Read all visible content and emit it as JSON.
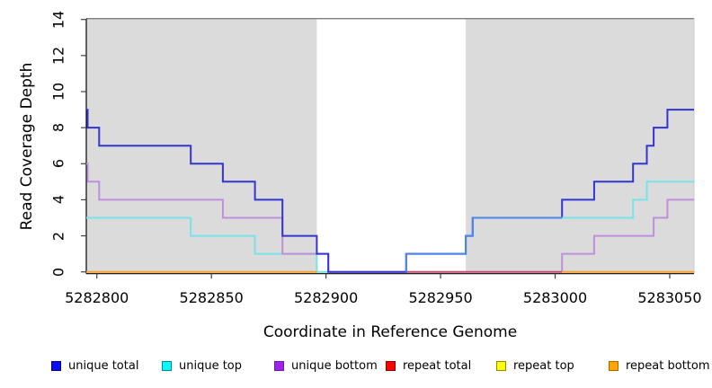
{
  "chart": {
    "ylabel": "Read Coverage Depth",
    "xlabel": "Coordinate in Reference Genome"
  },
  "chart_data": {
    "type": "line",
    "style": "step",
    "title": "",
    "xlabel": "Coordinate in Reference Genome",
    "ylabel": "Read Coverage Depth",
    "xlim": [
      5282795.4,
      5283060.6
    ],
    "ylim": [
      0,
      14
    ],
    "x_ticks": [
      5282800,
      5282850,
      5282900,
      5282950,
      5283000,
      5283050
    ],
    "x_tick_labels": [
      "5282800",
      "5282850",
      "5282900",
      "5282950",
      "5283000",
      "5283050"
    ],
    "y_ticks": [
      0,
      2,
      4,
      6,
      8,
      10,
      12,
      14
    ],
    "y_tick_labels": [
      "0",
      "2",
      "4",
      "6",
      "8",
      "10",
      "12",
      "14"
    ],
    "grid": false,
    "legend_position": "bottom",
    "plot_background": "#FFFFFF",
    "axis_color": "#000000",
    "tick_color": "#404040",
    "top_border_color": "#7F7F7F",
    "right_border_color": "#C9C9C9",
    "line_width": 2,
    "shaded_regions": [
      {
        "name": "left-shaded-region",
        "x0": 5282795.4,
        "x1": 5282896,
        "color": "#DBDBDB"
      },
      {
        "name": "right-shaded-region",
        "x0": 5282961,
        "x1": 5283060.6,
        "color": "#DBDBDB"
      }
    ],
    "series": [
      {
        "name": "unique total",
        "line_color": "#3434D0",
        "segments": [
          {
            "color": "#3434D0",
            "points": [
              [
                5282795.4,
                9
              ],
              [
                5282796,
                9
              ],
              [
                5282796,
                8
              ],
              [
                5282801,
                8
              ],
              [
                5282801,
                7
              ],
              [
                5282841,
                7
              ],
              [
                5282841,
                6
              ],
              [
                5282855,
                6
              ],
              [
                5282855,
                5
              ],
              [
                5282869,
                5
              ],
              [
                5282869,
                4
              ],
              [
                5282881,
                4
              ],
              [
                5282881,
                2
              ],
              [
                5282896,
                2
              ],
              [
                5282896,
                1
              ],
              [
                5282901,
                1
              ],
              [
                5282901,
                0
              ],
              [
                5282935,
                0
              ],
              [
                5282935,
                1
              ],
              [
                5282961,
                1
              ],
              [
                5282961,
                2
              ],
              [
                5282964,
                2
              ],
              [
                5282964,
                3
              ],
              [
                5283003,
                3
              ],
              [
                5283003,
                4
              ],
              [
                5283017,
                4
              ],
              [
                5283017,
                5
              ],
              [
                5283034,
                5
              ],
              [
                5283034,
                6
              ],
              [
                5283040,
                6
              ],
              [
                5283040,
                7
              ],
              [
                5283043,
                7
              ],
              [
                5283043,
                8
              ],
              [
                5283049,
                8
              ],
              [
                5283049,
                9
              ],
              [
                5283060.6,
                9
              ]
            ]
          }
        ]
      },
      {
        "name": "unique top",
        "line_color": "#76E4EA",
        "segments": [
          {
            "color": "#76E4EA",
            "points": [
              [
                5282795.4,
                3
              ],
              [
                5282841,
                3
              ],
              [
                5282841,
                2
              ],
              [
                5282869,
                2
              ],
              [
                5282869,
                1
              ],
              [
                5282896,
                1
              ],
              [
                5282896,
                0
              ],
              [
                5282901,
                0
              ]
            ]
          },
          {
            "color": "#4C86E8",
            "points": [
              [
                5282935,
                0
              ],
              [
                5282935,
                1
              ],
              [
                5282961,
                1
              ],
              [
                5282961,
                2
              ],
              [
                5282964,
                2
              ],
              [
                5282964,
                3
              ],
              [
                5283003,
                3
              ]
            ]
          },
          {
            "color": "#76E4EA",
            "points": [
              [
                5283003,
                3
              ],
              [
                5283034,
                3
              ],
              [
                5283034,
                4
              ],
              [
                5283040,
                4
              ],
              [
                5283040,
                5
              ],
              [
                5283060.6,
                5
              ]
            ]
          }
        ]
      },
      {
        "name": "unique bottom",
        "line_color": "#BE90DC",
        "segments": [
          {
            "color": "#BE90DC",
            "points": [
              [
                5282795.4,
                6
              ],
              [
                5282796,
                6
              ],
              [
                5282796,
                5
              ],
              [
                5282801,
                5
              ],
              [
                5282801,
                4
              ],
              [
                5282855,
                4
              ],
              [
                5282855,
                3
              ],
              [
                5282881,
                3
              ],
              [
                5282881,
                1
              ],
              [
                5282901,
                1
              ],
              [
                5282901,
                0
              ],
              [
                5282935,
                0
              ]
            ]
          },
          {
            "color": "#BE90DC",
            "points": [
              [
                5283003,
                0
              ],
              [
                5283003,
                1
              ],
              [
                5283017,
                1
              ],
              [
                5283017,
                2
              ],
              [
                5283043,
                2
              ],
              [
                5283043,
                3
              ],
              [
                5283049,
                3
              ],
              [
                5283049,
                4
              ],
              [
                5283060.6,
                4
              ]
            ]
          }
        ]
      },
      {
        "name": "repeat total",
        "line_color": "#C54B70",
        "segments": [
          {
            "color": "#C54B70",
            "points": [
              [
                5282935,
                0
              ],
              [
                5283003,
                0
              ]
            ]
          }
        ]
      },
      {
        "name": "repeat top",
        "line_color": "#FFFF00",
        "segments": []
      },
      {
        "name": "repeat bottom",
        "line_color": "#FF9E2C",
        "segments": [
          {
            "color": "#FF9E2C",
            "points": [
              [
                5282795.4,
                0
              ],
              [
                5282896,
                0
              ]
            ]
          },
          {
            "color": "#FF9E2C",
            "points": [
              [
                5283003,
                0
              ],
              [
                5283060.6,
                0
              ]
            ]
          }
        ]
      }
    ],
    "draw_order": [
      [
        1,
        0
      ],
      [
        2,
        0
      ],
      [
        2,
        1
      ],
      [
        3,
        0
      ],
      [
        5,
        0
      ],
      [
        5,
        1
      ],
      [
        0,
        0
      ],
      [
        1,
        1
      ],
      [
        1,
        2
      ]
    ]
  },
  "legend": {
    "items": [
      {
        "label": "unique total",
        "fill": "#0D0DF2",
        "border": "#00008B"
      },
      {
        "label": "unique top",
        "fill": "#00FFFF",
        "border": "#008B8B"
      },
      {
        "label": "unique bottom",
        "fill": "#A020F0",
        "border": "#661AA8"
      },
      {
        "label": "repeat total",
        "fill": "#FF0000",
        "border": "#8B0000"
      },
      {
        "label": "repeat top",
        "fill": "#FFFF00",
        "border": "#8B8B00"
      },
      {
        "label": "repeat bottom",
        "fill": "#FFA500",
        "border": "#B26500"
      }
    ]
  }
}
